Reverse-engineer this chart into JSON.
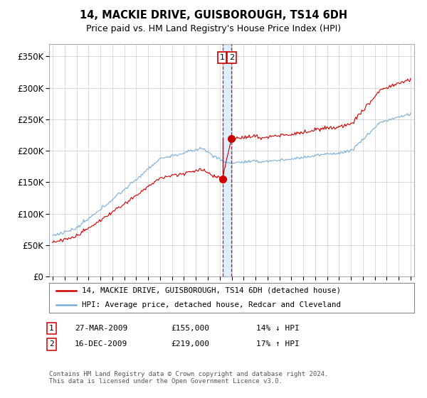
{
  "title": "14, MACKIE DRIVE, GUISBOROUGH, TS14 6DH",
  "subtitle": "Price paid vs. HM Land Registry's House Price Index (HPI)",
  "legend_line1": "14, MACKIE DRIVE, GUISBOROUGH, TS14 6DH (detached house)",
  "legend_line2": "HPI: Average price, detached house, Redcar and Cleveland",
  "footnote": "Contains HM Land Registry data © Crown copyright and database right 2024.\nThis data is licensed under the Open Government Licence v3.0.",
  "transaction1_date": "27-MAR-2009",
  "transaction1_price": "£155,000",
  "transaction1_hpi": "14% ↓ HPI",
  "transaction2_date": "16-DEC-2009",
  "transaction2_price": "£219,000",
  "transaction2_hpi": "17% ↑ HPI",
  "hpi_color": "#7aafd4",
  "price_color": "#cc0000",
  "vline_color": "#cc0000",
  "shade_color": "#ddeeff",
  "ylim": [
    0,
    370000
  ],
  "yticks": [
    0,
    50000,
    100000,
    150000,
    200000,
    250000,
    300000,
    350000
  ],
  "ytick_labels": [
    "£0",
    "£50K",
    "£100K",
    "£150K",
    "£200K",
    "£250K",
    "£300K",
    "£350K"
  ],
  "xstart_year": 1995,
  "xend_year": 2025,
  "transaction1_year": 2009.23,
  "transaction2_year": 2009.96,
  "transaction1_value": 155000,
  "transaction2_value": 219000
}
